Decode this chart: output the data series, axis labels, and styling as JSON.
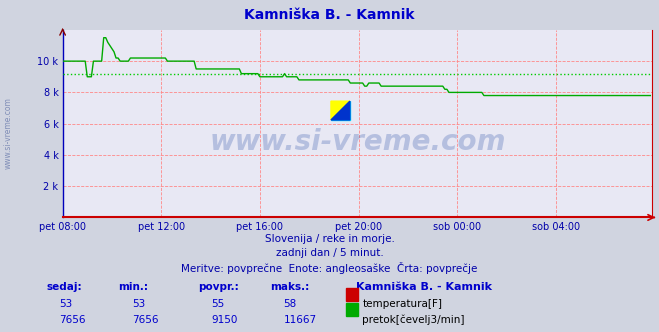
{
  "title": "Kamniška B. - Kamnik",
  "title_color": "#0000cc",
  "bg_color": "#d0d4e0",
  "plot_bg_color": "#e8e8f4",
  "grid_color": "#ff8888",
  "flow_color": "#00aa00",
  "temp_color": "#cc0000",
  "avg_line_color": "#00cc00",
  "avg_value": 9150,
  "ylabel_ticks": [
    "2 k",
    "4 k",
    "6 k",
    "8 k",
    "10 k"
  ],
  "ylabel_vals": [
    2000,
    4000,
    6000,
    8000,
    10000
  ],
  "xlim": [
    0,
    287
  ],
  "ylim": [
    0,
    12000
  ],
  "x_tick_labels": [
    "pet 08:00",
    "pet 12:00",
    "pet 16:00",
    "pet 20:00",
    "sob 00:00",
    "sob 04:00"
  ],
  "x_tick_positions": [
    0,
    48,
    96,
    144,
    192,
    240
  ],
  "watermark_text": "www.si-vreme.com",
  "watermark_color": "#3355aa",
  "watermark_alpha": 0.28,
  "subtitle1": "Slovenija / reke in morje.",
  "subtitle2": "zadnji dan / 5 minut.",
  "subtitle3": "Meritve: povprečne  Enote: angleosaške  Črta: povprečje",
  "subtitle_color": "#0000aa",
  "table_label_color": "#0000cc",
  "ylabel_color": "#0000aa",
  "xlabel_color": "#0000aa",
  "temp_vals": [
    "53",
    "53",
    "55",
    "58"
  ],
  "flow_vals": [
    "7656",
    "7656",
    "9150",
    "11667"
  ],
  "flow_data": [
    10000,
    10000,
    10000,
    10000,
    10000,
    10000,
    10000,
    10000,
    10000,
    10000,
    10000,
    10000,
    9000,
    9000,
    9000,
    10000,
    10000,
    10000,
    10000,
    10000,
    11500,
    11500,
    11200,
    11000,
    10800,
    10600,
    10200,
    10200,
    10000,
    10000,
    10000,
    10000,
    10000,
    10200,
    10200,
    10200,
    10200,
    10200,
    10200,
    10200,
    10200,
    10200,
    10200,
    10200,
    10200,
    10200,
    10200,
    10200,
    10200,
    10200,
    10200,
    10000,
    10000,
    10000,
    10000,
    10000,
    10000,
    10000,
    10000,
    10000,
    10000,
    10000,
    10000,
    10000,
    10000,
    9500,
    9500,
    9500,
    9500,
    9500,
    9500,
    9500,
    9500,
    9500,
    9500,
    9500,
    9500,
    9500,
    9500,
    9500,
    9500,
    9500,
    9500,
    9500,
    9500,
    9500,
    9500,
    9200,
    9200,
    9200,
    9200,
    9200,
    9200,
    9200,
    9200,
    9200,
    9000,
    9000,
    9000,
    9000,
    9000,
    9000,
    9000,
    9000,
    9000,
    9000,
    9000,
    9000,
    9200,
    9000,
    9000,
    9000,
    9000,
    9000,
    9000,
    8800,
    8800,
    8800,
    8800,
    8800,
    8800,
    8800,
    8800,
    8800,
    8800,
    8800,
    8800,
    8800,
    8800,
    8800,
    8800,
    8800,
    8800,
    8800,
    8800,
    8800,
    8800,
    8800,
    8800,
    8800,
    8600,
    8600,
    8600,
    8600,
    8600,
    8600,
    8600,
    8400,
    8400,
    8600,
    8600,
    8600,
    8600,
    8600,
    8600,
    8400,
    8400,
    8400,
    8400,
    8400,
    8400,
    8400,
    8400,
    8400,
    8400,
    8400,
    8400,
    8400,
    8400,
    8400,
    8400,
    8400,
    8400,
    8400,
    8400,
    8400,
    8400,
    8400,
    8400,
    8400,
    8400,
    8400,
    8400,
    8400,
    8400,
    8400,
    8200,
    8200,
    8000,
    8000,
    8000,
    8000,
    8000,
    8000,
    8000,
    8000,
    8000,
    8000,
    8000,
    8000,
    8000,
    8000,
    8000,
    8000,
    8000,
    7800,
    7800,
    7800,
    7800,
    7800,
    7800,
    7800,
    7800,
    7800,
    7800,
    7800,
    7800,
    7800,
    7800,
    7800,
    7800,
    7800,
    7800,
    7800,
    7800,
    7800,
    7800,
    7800,
    7800,
    7800,
    7800,
    7800,
    7800,
    7800,
    7800,
    7800,
    7800,
    7800,
    7800,
    7800,
    7800,
    7800,
    7800,
    7800,
    7800,
    7800,
    7800,
    7800,
    7800,
    7800,
    7800,
    7800,
    7800,
    7800,
    7800,
    7800,
    7800,
    7800,
    7800,
    7800,
    7800,
    7800,
    7800,
    7800,
    7800,
    7800,
    7800,
    7800,
    7800,
    7800,
    7800,
    7800,
    7800,
    7800,
    7800,
    7800,
    7800,
    7800,
    7800,
    7800,
    7800,
    7800,
    7800,
    7800,
    7800,
    7800,
    7800
  ]
}
